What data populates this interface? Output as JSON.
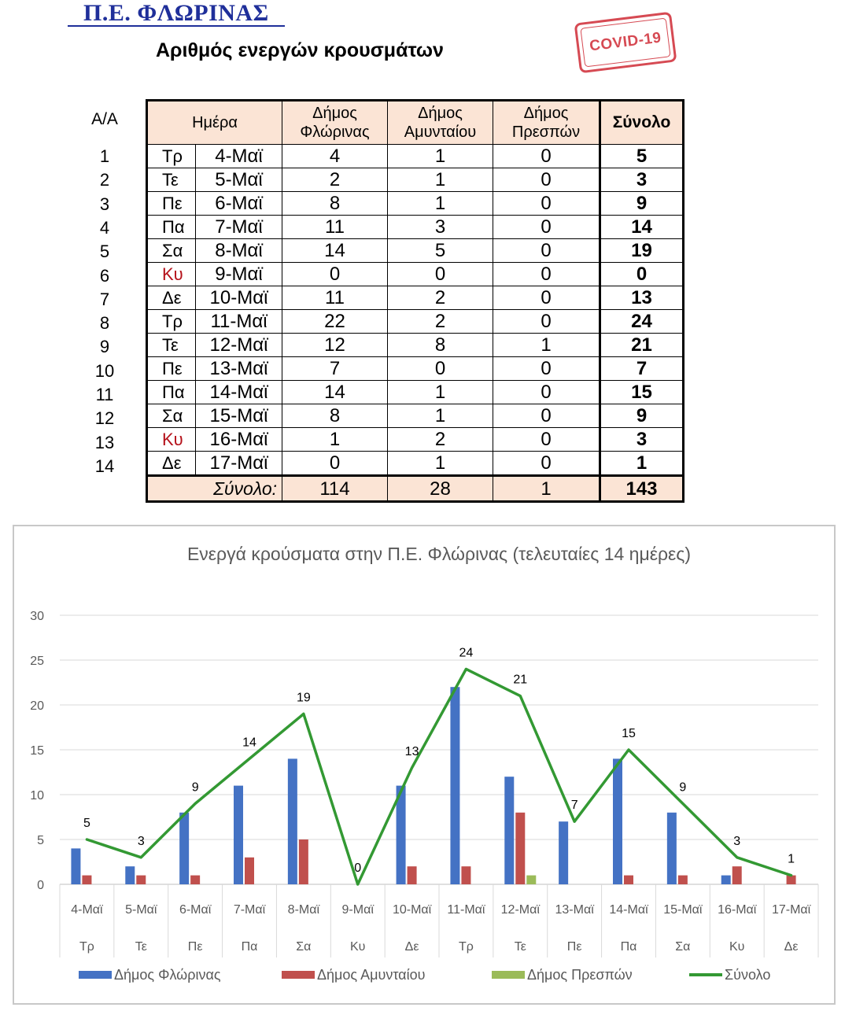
{
  "header": {
    "title": "Π.Ε. ΦΛΩΡΙΝΑΣ",
    "subtitle": "Αριθμός ενεργών κρουσμάτων",
    "stamp": "COVID-19"
  },
  "table": {
    "aa_header": "Α/Α",
    "columns": [
      "Ημέρα",
      "Δήμος Φλώρινας",
      "Δήμος Αμυνταίου",
      "Δήμος Πρεσπών",
      "Σύνολο"
    ],
    "rows": [
      {
        "aa": "1",
        "day": "Τρ",
        "date": "4-Μαϊ",
        "florina": "4",
        "amyntaio": "1",
        "prespes": "0",
        "total": "5"
      },
      {
        "aa": "2",
        "day": "Τε",
        "date": "5-Μαϊ",
        "florina": "2",
        "amyntaio": "1",
        "prespes": "0",
        "total": "3"
      },
      {
        "aa": "3",
        "day": "Πε",
        "date": "6-Μαϊ",
        "florina": "8",
        "amyntaio": "1",
        "prespes": "0",
        "total": "9"
      },
      {
        "aa": "4",
        "day": "Πα",
        "date": "7-Μαϊ",
        "florina": "11",
        "amyntaio": "3",
        "prespes": "0",
        "total": "14"
      },
      {
        "aa": "5",
        "day": "Σα",
        "date": "8-Μαϊ",
        "florina": "14",
        "amyntaio": "5",
        "prespes": "0",
        "total": "19"
      },
      {
        "aa": "6",
        "day": "Κυ",
        "date": "9-Μαϊ",
        "florina": "0",
        "amyntaio": "0",
        "prespes": "0",
        "total": "0"
      },
      {
        "aa": "7",
        "day": "Δε",
        "date": "10-Μαϊ",
        "florina": "11",
        "amyntaio": "2",
        "prespes": "0",
        "total": "13"
      },
      {
        "aa": "8",
        "day": "Τρ",
        "date": "11-Μαϊ",
        "florina": "22",
        "amyntaio": "2",
        "prespes": "0",
        "total": "24"
      },
      {
        "aa": "9",
        "day": "Τε",
        "date": "12-Μαϊ",
        "florina": "12",
        "amyntaio": "8",
        "prespes": "1",
        "total": "21"
      },
      {
        "aa": "10",
        "day": "Πε",
        "date": "13-Μαϊ",
        "florina": "7",
        "amyntaio": "0",
        "prespes": "0",
        "total": "7"
      },
      {
        "aa": "11",
        "day": "Πα",
        "date": "14-Μαϊ",
        "florina": "14",
        "amyntaio": "1",
        "prespes": "0",
        "total": "15"
      },
      {
        "aa": "12",
        "day": "Σα",
        "date": "15-Μαϊ",
        "florina": "8",
        "amyntaio": "1",
        "prespes": "0",
        "total": "9"
      },
      {
        "aa": "13",
        "day": "Κυ",
        "date": "16-Μαϊ",
        "florina": "1",
        "amyntaio": "2",
        "prespes": "0",
        "total": "3"
      },
      {
        "aa": "14",
        "day": "Δε",
        "date": "17-Μαϊ",
        "florina": "0",
        "amyntaio": "1",
        "prespes": "0",
        "total": "1"
      }
    ],
    "footer": {
      "label": "Σύνολο:",
      "florina": "114",
      "amyntaio": "28",
      "prespes": "1",
      "total": "143"
    },
    "colors": {
      "header_bg": "#fbe4d5",
      "sunday_text": "#b5121b"
    }
  },
  "chart_data": {
    "type": "bar+line",
    "title": "Ενεργά κρούσματα στην Π.Ε. Φλώρινας (τελευταίες 14 ημέρες)",
    "categories": [
      "4-Μαϊ",
      "5-Μαϊ",
      "6-Μαϊ",
      "7-Μαϊ",
      "8-Μαϊ",
      "9-Μαϊ",
      "10-Μαϊ",
      "11-Μαϊ",
      "12-Μαϊ",
      "13-Μαϊ",
      "14-Μαϊ",
      "15-Μαϊ",
      "16-Μαϊ",
      "17-Μαϊ"
    ],
    "sub_categories": [
      "Τρ",
      "Τε",
      "Πε",
      "Πα",
      "Σα",
      "Κυ",
      "Δε",
      "Τρ",
      "Τε",
      "Πε",
      "Πα",
      "Σα",
      "Κυ",
      "Δε"
    ],
    "series": [
      {
        "name": "Δήμος Φλώρινας",
        "kind": "bar",
        "color": "#4472c4",
        "values": [
          4,
          2,
          8,
          11,
          14,
          0,
          11,
          22,
          12,
          7,
          14,
          8,
          1,
          0
        ]
      },
      {
        "name": "Δήμος Αμυνταίου",
        "kind": "bar",
        "color": "#c0504d",
        "values": [
          1,
          1,
          1,
          3,
          5,
          0,
          2,
          2,
          8,
          0,
          1,
          1,
          2,
          1
        ]
      },
      {
        "name": "Δήμος Πρεσπών",
        "kind": "bar",
        "color": "#9bbb59",
        "values": [
          0,
          0,
          0,
          0,
          0,
          0,
          0,
          0,
          1,
          0,
          0,
          0,
          0,
          0
        ]
      },
      {
        "name": "Σύνολο",
        "kind": "line",
        "color": "#339933",
        "values": [
          5,
          3,
          9,
          14,
          19,
          0,
          13,
          24,
          21,
          7,
          15,
          9,
          3,
          1
        ],
        "data_labels": [
          "5",
          "3",
          "9",
          "14",
          "19",
          "0",
          "13",
          "24",
          "21",
          "7",
          "15",
          "9",
          "3",
          "1"
        ]
      }
    ],
    "y_ticks": [
      "0",
      "5",
      "10",
      "15",
      "20",
      "25",
      "30"
    ],
    "ylim": [
      0,
      30
    ],
    "grid": true,
    "legend": "bottom"
  }
}
